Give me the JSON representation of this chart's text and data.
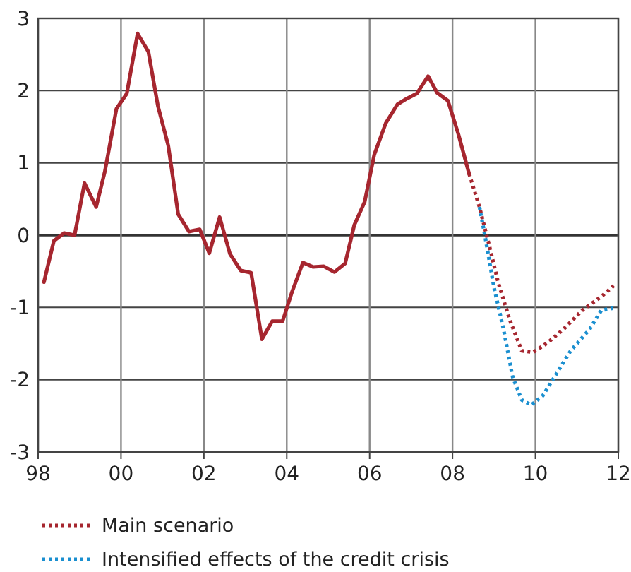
{
  "chart_data": {
    "type": "line",
    "xlim": [
      1998,
      2012
    ],
    "xticks": [
      {
        "value": 1998,
        "label": "98"
      },
      {
        "value": 2000,
        "label": "00"
      },
      {
        "value": 2002,
        "label": "02"
      },
      {
        "value": 2004,
        "label": "04"
      },
      {
        "value": 2006,
        "label": "06"
      },
      {
        "value": 2008,
        "label": "08"
      },
      {
        "value": 2010,
        "label": "10"
      },
      {
        "value": 2012,
        "label": "12"
      }
    ],
    "ylim": [
      -3,
      3
    ],
    "yticks": [
      -3,
      -2,
      -1,
      0,
      1,
      2,
      3
    ],
    "grid": true,
    "legend": "bottom",
    "marker": "none",
    "series": [
      {
        "color": "#a6262f",
        "line_style": "solid",
        "x": [
          1998.14,
          1998.38,
          1998.63,
          1998.88,
          1999.12,
          1999.4,
          1999.61,
          1999.89,
          2000.14,
          2000.4,
          2000.66,
          2000.89,
          2001.14,
          2001.38,
          2001.64,
          2001.9,
          2002.13,
          2002.38,
          2002.63,
          2002.89,
          2003.14,
          2003.4,
          2003.65,
          2003.9,
          2004.13,
          2004.39,
          2004.64,
          2004.89,
          2005.15,
          2005.41,
          2005.63,
          2005.88,
          2006.11,
          2006.39,
          2006.67,
          2006.9,
          2007.14,
          2007.41,
          2007.63,
          2007.89,
          2008.14,
          2008.4
        ],
        "values": [
          -0.65,
          -0.08,
          0.03,
          0,
          0.72,
          0.39,
          0.88,
          1.75,
          1.96,
          2.79,
          2.54,
          1.79,
          1.24,
          0.29,
          0.05,
          0.08,
          -0.25,
          0.25,
          -0.26,
          -0.49,
          -0.52,
          -1.44,
          -1.19,
          -1.19,
          -0.78,
          -0.38,
          -0.44,
          -0.43,
          -0.51,
          -0.39,
          0.14,
          0.46,
          1.11,
          1.55,
          1.81,
          1.89,
          1.96,
          2.2,
          1.97,
          1.86,
          1.4,
          0.85
        ]
      },
      {
        "name": "Main scenario",
        "color": "#a6262f",
        "line_style": "dotted",
        "x": [
          2008.4,
          2008.65,
          2008.88,
          2009.1,
          2009.38,
          2009.67,
          2009.95,
          2010.29,
          2010.68,
          2011.13,
          2011.59,
          2011.89
        ],
        "values": [
          0.85,
          0.39,
          -0.13,
          -0.65,
          -1.17,
          -1.6,
          -1.62,
          -1.49,
          -1.3,
          -1.04,
          -0.85,
          -0.7
        ]
      },
      {
        "name": "Intensified effects of the credit crisis",
        "color": "#1a8fd0",
        "line_style": "dotted",
        "x": [
          2008.65,
          2008.78,
          2009.0,
          2009.23,
          2009.45,
          2009.67,
          2009.9,
          2010.18,
          2010.46,
          2010.85,
          2011.31,
          2011.59,
          2011.87
        ],
        "values": [
          0.39,
          0,
          -0.72,
          -1.3,
          -1.96,
          -2.28,
          -2.35,
          -2.22,
          -1.96,
          -1.6,
          -1.3,
          -1.04,
          -1.01
        ]
      }
    ]
  }
}
